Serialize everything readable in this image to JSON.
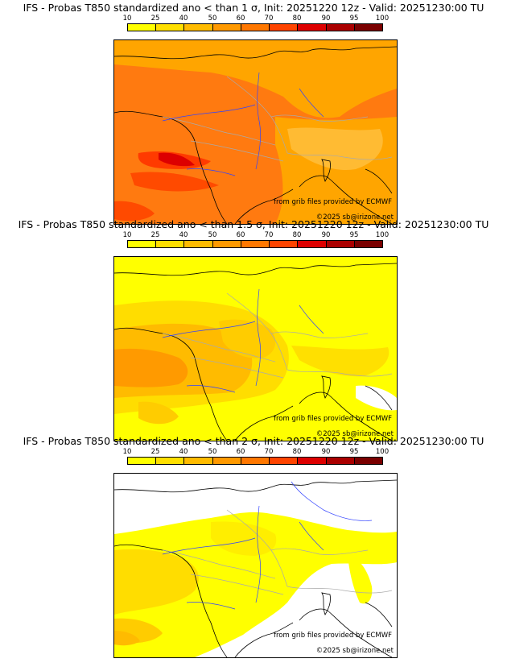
{
  "colorbar": {
    "ticks": [
      "10",
      "25",
      "40",
      "50",
      "60",
      "70",
      "80",
      "90",
      "95",
      "100"
    ],
    "colors": [
      "#ffff00",
      "#ffdf00",
      "#ffbb00",
      "#ff9900",
      "#ff7700",
      "#ff4400",
      "#dd0000",
      "#aa0000",
      "#7a0000"
    ]
  },
  "credits": {
    "source": "from grib files provided by ECMWF",
    "copyright": "©2025 sb@irizone.net"
  },
  "panels": [
    {
      "title": "IFS - Probas T850  standardized ano < than 1 σ, Init: 20251220 12z - Valid: 20251230:00 TU"
    },
    {
      "title": "IFS - Probas T850  standardized ano < than 1.5 σ, Init: 20251220 12z - Valid: 20251230:00 TU"
    },
    {
      "title": "IFS - Probas T850  standardized ano < than 2 σ, Init: 20251220 12z - Valid: 20251230:00 TU"
    }
  ],
  "map_colors": {
    "coast": "#000000",
    "borders": "#aaaaaa",
    "rivers": "#3344ff"
  }
}
